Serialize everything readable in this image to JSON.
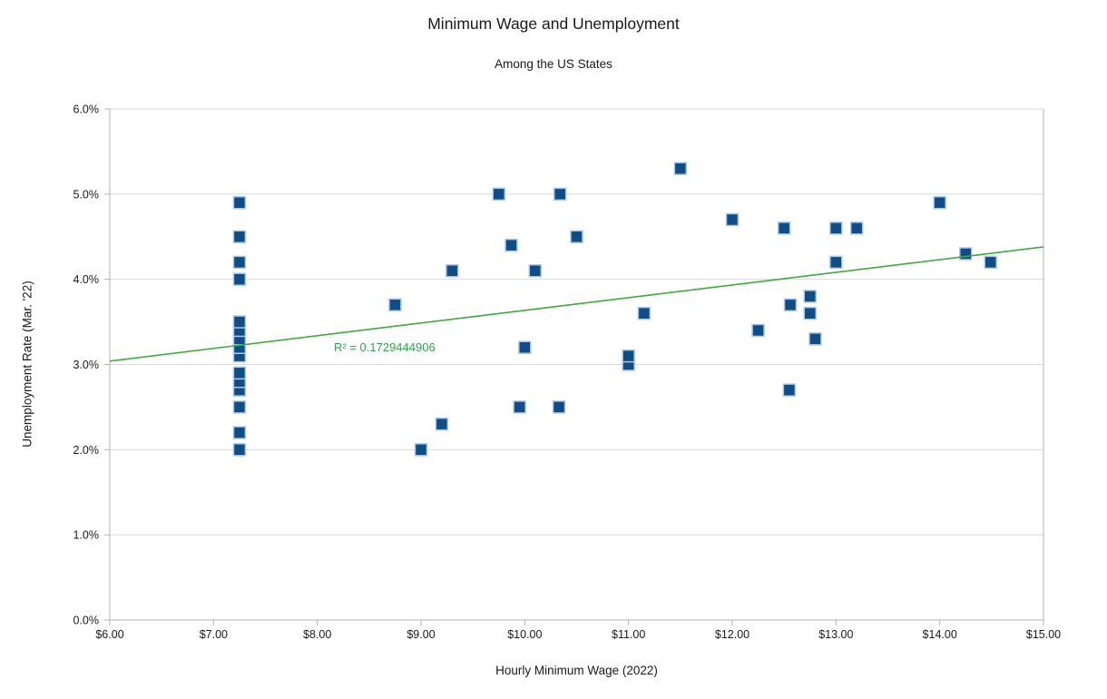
{
  "chart_data": {
    "type": "scatter",
    "title": "Minimum Wage and Unemployment",
    "subtitle": "Among the US States",
    "xlabel": "Hourly Minimum Wage (2022)",
    "ylabel": "Unemployment Rate (Mar. '22)",
    "xlim": [
      6,
      15
    ],
    "ylim": [
      0,
      6
    ],
    "grid": "horizontal-only",
    "legend": "none",
    "x_ticks": [
      6,
      7,
      8,
      9,
      10,
      11,
      12,
      13,
      14,
      15
    ],
    "x_tick_labels": [
      "$6.00",
      "$7.00",
      "$8.00",
      "$9.00",
      "$10.00",
      "$11.00",
      "$12.00",
      "$13.00",
      "$14.00",
      "$15.00"
    ],
    "y_ticks": [
      0,
      1,
      2,
      3,
      4,
      5,
      6
    ],
    "y_tick_labels": [
      "0.0%",
      "1.0%",
      "2.0%",
      "3.0%",
      "4.0%",
      "5.0%",
      "6.0%"
    ],
    "points": [
      [
        7.25,
        2.0
      ],
      [
        7.25,
        2.2
      ],
      [
        7.25,
        2.5
      ],
      [
        7.25,
        2.7
      ],
      [
        7.25,
        2.8
      ],
      [
        7.25,
        2.9
      ],
      [
        7.25,
        3.1
      ],
      [
        7.25,
        3.2
      ],
      [
        7.25,
        3.3
      ],
      [
        7.25,
        3.4
      ],
      [
        7.25,
        3.5
      ],
      [
        7.25,
        4.0
      ],
      [
        7.25,
        4.2
      ],
      [
        7.25,
        4.5
      ],
      [
        7.25,
        4.9
      ],
      [
        8.75,
        3.7
      ],
      [
        9.0,
        2.0
      ],
      [
        9.2,
        2.3
      ],
      [
        9.3,
        4.1
      ],
      [
        9.75,
        5.0
      ],
      [
        9.87,
        4.4
      ],
      [
        9.95,
        2.5
      ],
      [
        10.0,
        3.2
      ],
      [
        10.1,
        4.1
      ],
      [
        10.33,
        2.5
      ],
      [
        10.34,
        5.0
      ],
      [
        10.5,
        4.5
      ],
      [
        11.0,
        3.0
      ],
      [
        11.0,
        3.1
      ],
      [
        11.15,
        3.6
      ],
      [
        11.5,
        5.3
      ],
      [
        12.0,
        4.7
      ],
      [
        12.25,
        3.4
      ],
      [
        12.5,
        4.6
      ],
      [
        12.55,
        2.7
      ],
      [
        12.56,
        3.7
      ],
      [
        12.75,
        3.6
      ],
      [
        12.75,
        3.8
      ],
      [
        12.8,
        3.3
      ],
      [
        13.0,
        4.2
      ],
      [
        13.0,
        4.6
      ],
      [
        13.2,
        4.6
      ],
      [
        14.0,
        4.9
      ],
      [
        14.25,
        4.3
      ],
      [
        14.49,
        4.2
      ]
    ],
    "trendline": {
      "x": [
        6,
        15
      ],
      "y": [
        3.04,
        4.38
      ],
      "r2_label": "R² = 0.1729444906"
    },
    "colors": {
      "marker_fill": "#0f4d87",
      "marker_border": "#aec8e4",
      "trend_green": "#3faa3f",
      "r2_text_green": "#2ea84e",
      "gridline": "#d9d9d9",
      "axis_line": "#b3b3b3",
      "text": "#1a1a1a"
    }
  }
}
